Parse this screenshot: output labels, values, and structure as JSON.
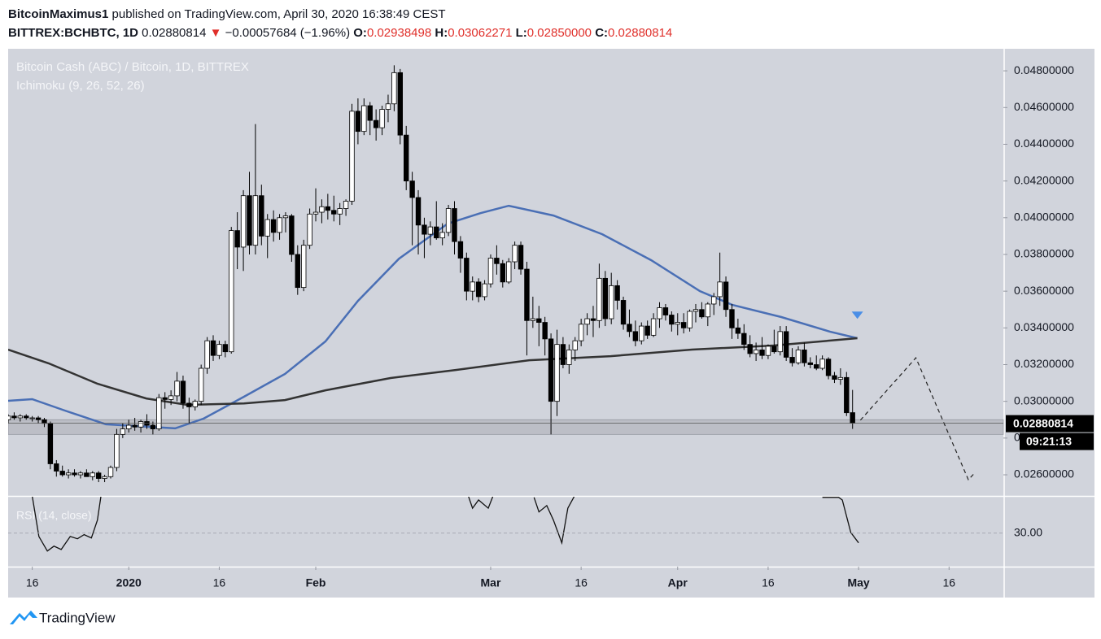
{
  "header": {
    "author": "BitcoinMaximus1",
    "published": "published on TradingView.com, April 30, 2020 16:38:49 CEST",
    "symbol": "BITTREX:BCHBTC, 1D",
    "arrow": "▼",
    "change": "−0.00057684 (−1.96%)",
    "o_label": "O:",
    "h_label": "H:",
    "l_label": "L:",
    "l": "0.02850000",
    "c_label": "C:"
  },
  "chart_data": {
    "type": "candlestick",
    "title": "Bitcoin Cash (ABC) / Bitcoin, 1D, BITTREX",
    "indicator": "Ichimoku (9, 26, 52, 26)",
    "xlim": [
      0,
      165
    ],
    "xticks": [
      {
        "value": 4,
        "label": "16"
      },
      {
        "value": 20,
        "label": "2020"
      },
      {
        "value": 35,
        "label": "16"
      },
      {
        "value": 51,
        "label": "Feb"
      },
      {
        "value": 80,
        "label": "Mar"
      },
      {
        "value": 95,
        "label": "16"
      },
      {
        "value": 111,
        "label": "Apr"
      },
      {
        "value": 126,
        "label": "16"
      },
      {
        "value": 141,
        "label": "May"
      },
      {
        "value": 156,
        "label": "16"
      }
    ],
    "ylim": [
      0.02485,
      0.0492
    ],
    "yticks": [
      {
        "value": 0.048,
        "label": "0.04800000"
      },
      {
        "value": 0.046,
        "label": "0.04600000"
      },
      {
        "value": 0.044,
        "label": "0.04400000"
      },
      {
        "value": 0.042,
        "label": "0.04200000"
      },
      {
        "value": 0.04,
        "label": "0.04000000"
      },
      {
        "value": 0.038,
        "label": "0.03800000"
      },
      {
        "value": 0.036,
        "label": "0.03600000"
      },
      {
        "value": 0.034,
        "label": "0.03400000"
      },
      {
        "value": 0.032,
        "label": "0.03200000"
      },
      {
        "value": 0.03,
        "label": "0.03000000"
      },
      {
        "value": 0.028,
        "label": "0.02800000"
      },
      {
        "value": 0.026,
        "label": "0.02600000"
      }
    ],
    "up_color": "#ffffff",
    "down_color": "#000000",
    "candles": [
      [
        0.029,
        0.0293,
        0.0288,
        0.0292
      ],
      [
        0.0292,
        0.0294,
        0.029,
        0.0291
      ],
      [
        0.0291,
        0.0293,
        0.0289,
        0.0292
      ],
      [
        0.0292,
        0.0293,
        0.029,
        0.0291
      ],
      [
        0.0291,
        0.0292,
        0.0289,
        0.0291
      ],
      [
        0.0291,
        0.0292,
        0.0288,
        0.029
      ],
      [
        0.029,
        0.0291,
        0.0286,
        0.0288
      ],
      [
        0.0288,
        0.0289,
        0.0263,
        0.0266
      ],
      [
        0.0266,
        0.0268,
        0.0259,
        0.0262
      ],
      [
        0.0262,
        0.0265,
        0.0259,
        0.026
      ],
      [
        0.026,
        0.0263,
        0.0258,
        0.0261
      ],
      [
        0.0261,
        0.0263,
        0.0259,
        0.026
      ],
      [
        0.026,
        0.0262,
        0.0258,
        0.0261
      ],
      [
        0.0261,
        0.0263,
        0.0259,
        0.0259
      ],
      [
        0.0259,
        0.0262,
        0.0257,
        0.0261
      ],
      [
        0.0261,
        0.0262,
        0.0256,
        0.0258
      ],
      [
        0.0258,
        0.026,
        0.0256,
        0.0259
      ],
      [
        0.0259,
        0.0265,
        0.0258,
        0.0264
      ],
      [
        0.0264,
        0.0285,
        0.0262,
        0.0282
      ],
      [
        0.0282,
        0.0288,
        0.028,
        0.0285
      ],
      [
        0.0285,
        0.029,
        0.0283,
        0.0287
      ],
      [
        0.0287,
        0.0291,
        0.0284,
        0.0286
      ],
      [
        0.0286,
        0.029,
        0.0283,
        0.0289
      ],
      [
        0.0289,
        0.0293,
        0.0285,
        0.0287
      ],
      [
        0.0287,
        0.0289,
        0.0282,
        0.0285
      ],
      [
        0.0285,
        0.0304,
        0.0284,
        0.0302
      ],
      [
        0.0302,
        0.0305,
        0.0296,
        0.0301
      ],
      [
        0.0301,
        0.0306,
        0.0298,
        0.0303
      ],
      [
        0.0303,
        0.0316,
        0.03,
        0.0311
      ],
      [
        0.0311,
        0.0314,
        0.0296,
        0.0299
      ],
      [
        0.0299,
        0.0302,
        0.0288,
        0.0297
      ],
      [
        0.0297,
        0.0301,
        0.0295,
        0.03
      ],
      [
        0.03,
        0.032,
        0.0298,
        0.0318
      ],
      [
        0.0318,
        0.0335,
        0.0315,
        0.0333
      ],
      [
        0.0333,
        0.0336,
        0.0322,
        0.0325
      ],
      [
        0.0325,
        0.0333,
        0.0323,
        0.0331
      ],
      [
        0.0331,
        0.0333,
        0.0324,
        0.0327
      ],
      [
        0.0327,
        0.0395,
        0.0326,
        0.0393
      ],
      [
        0.0393,
        0.0403,
        0.0372,
        0.0384
      ],
      [
        0.0384,
        0.0415,
        0.0371,
        0.0412
      ],
      [
        0.0412,
        0.0425,
        0.038,
        0.0385
      ],
      [
        0.0385,
        0.0451,
        0.038,
        0.0412
      ],
      [
        0.0412,
        0.0418,
        0.0385,
        0.039
      ],
      [
        0.039,
        0.0402,
        0.0378,
        0.0399
      ],
      [
        0.0399,
        0.0404,
        0.0387,
        0.0392
      ],
      [
        0.0392,
        0.0402,
        0.0388,
        0.04
      ],
      [
        0.04,
        0.0403,
        0.0392,
        0.0401
      ],
      [
        0.0401,
        0.0402,
        0.0376,
        0.038
      ],
      [
        0.038,
        0.0385,
        0.0358,
        0.0362
      ],
      [
        0.0362,
        0.0388,
        0.036,
        0.0385
      ],
      [
        0.0385,
        0.0405,
        0.0383,
        0.0402
      ],
      [
        0.0402,
        0.0416,
        0.0398,
        0.0403
      ],
      [
        0.0403,
        0.041,
        0.0397,
        0.0406
      ],
      [
        0.0406,
        0.0413,
        0.0399,
        0.0404
      ],
      [
        0.0404,
        0.0412,
        0.0398,
        0.0402
      ],
      [
        0.0402,
        0.0408,
        0.0396,
        0.0405
      ],
      [
        0.0405,
        0.041,
        0.0401,
        0.0409
      ],
      [
        0.0409,
        0.0462,
        0.0407,
        0.0458
      ],
      [
        0.0458,
        0.0465,
        0.044,
        0.0447
      ],
      [
        0.0447,
        0.0465,
        0.0445,
        0.0461
      ],
      [
        0.0461,
        0.0463,
        0.0445,
        0.0453
      ],
      [
        0.0453,
        0.0459,
        0.0442,
        0.0449
      ],
      [
        0.0449,
        0.0461,
        0.0445,
        0.0459
      ],
      [
        0.0459,
        0.0467,
        0.0452,
        0.0462
      ],
      [
        0.0462,
        0.0483,
        0.0458,
        0.0479
      ],
      [
        0.0479,
        0.0481,
        0.044,
        0.0445
      ],
      [
        0.0445,
        0.045,
        0.0415,
        0.042
      ],
      [
        0.042,
        0.0425,
        0.0385,
        0.0411
      ],
      [
        0.0411,
        0.0415,
        0.038,
        0.0396
      ],
      [
        0.0396,
        0.04,
        0.0378,
        0.0391
      ],
      [
        0.0391,
        0.0398,
        0.0385,
        0.0395
      ],
      [
        0.0395,
        0.0409,
        0.0388,
        0.0389
      ],
      [
        0.0389,
        0.0397,
        0.0385,
        0.0392
      ],
      [
        0.0392,
        0.0407,
        0.039,
        0.0405
      ],
      [
        0.0405,
        0.0409,
        0.038,
        0.0387
      ],
      [
        0.0387,
        0.039,
        0.037,
        0.0378
      ],
      [
        0.0378,
        0.0381,
        0.0355,
        0.036
      ],
      [
        0.036,
        0.0368,
        0.0355,
        0.0365
      ],
      [
        0.0365,
        0.0367,
        0.0354,
        0.0357
      ],
      [
        0.0357,
        0.0366,
        0.0355,
        0.0364
      ],
      [
        0.0364,
        0.038,
        0.0362,
        0.0378
      ],
      [
        0.0378,
        0.0385,
        0.0369,
        0.0375
      ],
      [
        0.0375,
        0.0377,
        0.0362,
        0.0365
      ],
      [
        0.0365,
        0.0378,
        0.0364,
        0.0376
      ],
      [
        0.0376,
        0.0387,
        0.0372,
        0.0385
      ],
      [
        0.0385,
        0.0387,
        0.0369,
        0.0372
      ],
      [
        0.0372,
        0.0376,
        0.0325,
        0.0344
      ],
      [
        0.0344,
        0.0357,
        0.034,
        0.0345
      ],
      [
        0.0345,
        0.0352,
        0.033,
        0.0343
      ],
      [
        0.0343,
        0.0346,
        0.0325,
        0.0334
      ],
      [
        0.0334,
        0.0337,
        0.0282,
        0.03
      ],
      [
        0.03,
        0.0339,
        0.0292,
        0.0331
      ],
      [
        0.0331,
        0.0335,
        0.0318,
        0.032
      ],
      [
        0.032,
        0.0331,
        0.0315,
        0.0328
      ],
      [
        0.0328,
        0.0335,
        0.0322,
        0.0333
      ],
      [
        0.0333,
        0.0345,
        0.033,
        0.0342
      ],
      [
        0.0342,
        0.0348,
        0.0336,
        0.0345
      ],
      [
        0.0345,
        0.0352,
        0.0335,
        0.0344
      ],
      [
        0.0344,
        0.0375,
        0.034,
        0.0367
      ],
      [
        0.0367,
        0.0371,
        0.0341,
        0.0345
      ],
      [
        0.0345,
        0.037,
        0.0342,
        0.0363
      ],
      [
        0.0363,
        0.0366,
        0.035,
        0.0355
      ],
      [
        0.0355,
        0.0357,
        0.0339,
        0.0342
      ],
      [
        0.0342,
        0.035,
        0.0335,
        0.0338
      ],
      [
        0.0338,
        0.0344,
        0.033,
        0.0333
      ],
      [
        0.0333,
        0.0343,
        0.0331,
        0.0341
      ],
      [
        0.0341,
        0.0344,
        0.0334,
        0.0336
      ],
      [
        0.0336,
        0.0348,
        0.0335,
        0.0345
      ],
      [
        0.0345,
        0.0354,
        0.034,
        0.0351
      ],
      [
        0.0351,
        0.0353,
        0.0344,
        0.0347
      ],
      [
        0.0347,
        0.0349,
        0.0338,
        0.0342
      ],
      [
        0.0342,
        0.0348,
        0.0336,
        0.0343
      ],
      [
        0.0343,
        0.0348,
        0.0337,
        0.034
      ],
      [
        0.034,
        0.035,
        0.0338,
        0.0349
      ],
      [
        0.0349,
        0.0353,
        0.0343,
        0.035
      ],
      [
        0.035,
        0.0354,
        0.0345,
        0.0346
      ],
      [
        0.0346,
        0.0354,
        0.0341,
        0.0353
      ],
      [
        0.0353,
        0.0359,
        0.0347,
        0.0357
      ],
      [
        0.0357,
        0.0381,
        0.0352,
        0.0365
      ],
      [
        0.0365,
        0.0368,
        0.0346,
        0.035
      ],
      [
        0.035,
        0.0353,
        0.0334,
        0.034
      ],
      [
        0.034,
        0.0345,
        0.0334,
        0.0337
      ],
      [
        0.0337,
        0.0342,
        0.0328,
        0.0331
      ],
      [
        0.0331,
        0.0336,
        0.0324,
        0.0326
      ],
      [
        0.0326,
        0.0332,
        0.0322,
        0.0328
      ],
      [
        0.0328,
        0.0335,
        0.0323,
        0.0325
      ],
      [
        0.0325,
        0.0331,
        0.0323,
        0.033
      ],
      [
        0.033,
        0.0339,
        0.0326,
        0.0327
      ],
      [
        0.0327,
        0.0341,
        0.0325,
        0.0338
      ],
      [
        0.0338,
        0.0341,
        0.0322,
        0.0324
      ],
      [
        0.0324,
        0.0329,
        0.0319,
        0.0321
      ],
      [
        0.0321,
        0.033,
        0.032,
        0.0328
      ],
      [
        0.0328,
        0.0332,
        0.0319,
        0.0321
      ],
      [
        0.0321,
        0.0324,
        0.0318,
        0.032
      ],
      [
        0.032,
        0.0325,
        0.0317,
        0.0318
      ],
      [
        0.0318,
        0.0325,
        0.0317,
        0.0323
      ],
      [
        0.0323,
        0.0324,
        0.0312,
        0.0314
      ],
      [
        0.0314,
        0.0316,
        0.031,
        0.0312
      ],
      [
        0.0312,
        0.0318,
        0.0309,
        0.0313
      ],
      [
        0.0313,
        0.0316,
        0.0292,
        0.02938
      ],
      [
        0.02938498,
        0.03062271,
        0.0285,
        0.02880814
      ]
    ],
    "series": [
      {
        "color": "#4a6fb5",
        "x": [
          0,
          4,
          9.4,
          16.2,
          27.7,
          32.4,
          39.1,
          45.9,
          52.6,
          58,
          64.8,
          72.9,
          78.3,
          83,
          90.4,
          98.5,
          106.6,
          114.7,
          120.1,
          128.2,
          136.3,
          140.8
        ],
        "values": [
          0.03003,
          0.03012,
          0.0295,
          0.02875,
          0.02853,
          0.02906,
          0.03025,
          0.03149,
          0.03326,
          0.03547,
          0.03777,
          0.03968,
          0.04025,
          0.04065,
          0.04012,
          0.0391,
          0.03769,
          0.036,
          0.03525,
          0.03459,
          0.03379,
          0.03344
        ]
      },
      {
        "color": "#333333",
        "x": [
          0,
          6.7,
          14.8,
          22.9,
          29.7,
          39.1,
          45.9,
          52.6,
          63.4,
          74.2,
          86.4,
          99.9,
          113.4,
          126.9,
          140.8
        ],
        "values": [
          0.03282,
          0.03207,
          0.03096,
          0.03016,
          0.02981,
          0.02989,
          0.03007,
          0.0306,
          0.03127,
          0.03171,
          0.03224,
          0.03246,
          0.03282,
          0.03304,
          0.03344
        ]
      }
    ],
    "zone": {
      "low": 0.0282,
      "high": 0.029,
      "color": "#b8bac2"
    },
    "countdown": "09:21:13",
    "projection": {
      "x": [
        141.3,
        150.5,
        159.2,
        160.2
      ],
      "values": [
        0.02897,
        0.03237,
        0.02573,
        0.02608
      ]
    },
    "marker": {
      "x": 140.8,
      "value": 0.03467,
      "color": "#4a8ee6"
    },
    "rsi": {
      "title": "RSI (14, close)",
      "ylim": [
        21,
        40
      ],
      "yticks": [
        {
          "value": 30,
          "label": "30.00"
        }
      ],
      "color": "#111111",
      "x": [
        4.0,
        5.1,
        6.5,
        7.6,
        8.8,
        10.3,
        11.5,
        12.6,
        13.8,
        14.8,
        15.4,
        null,
        76.3,
        77.0,
        78.0,
        79.6,
        80.4,
        null,
        87.2,
        88.0,
        89.3,
        90.4,
        91.8,
        92.8,
        93.9,
        null,
        135.0,
        137.7,
        138.3,
        139.7,
        141.0
      ],
      "values": [
        40,
        29.1,
        25.2,
        26.5,
        25.6,
        29.1,
        28.5,
        29.6,
        28.7,
        33.5,
        40,
        null,
        40,
        36.7,
        38.9,
        36.7,
        40,
        null,
        39.6,
        35.7,
        37.4,
        33.5,
        27.4,
        36.7,
        40,
        null,
        39.6,
        39.6,
        38.9,
        30.2,
        27.4
      ]
    }
  },
  "footer": {
    "brand": "TradingView"
  }
}
